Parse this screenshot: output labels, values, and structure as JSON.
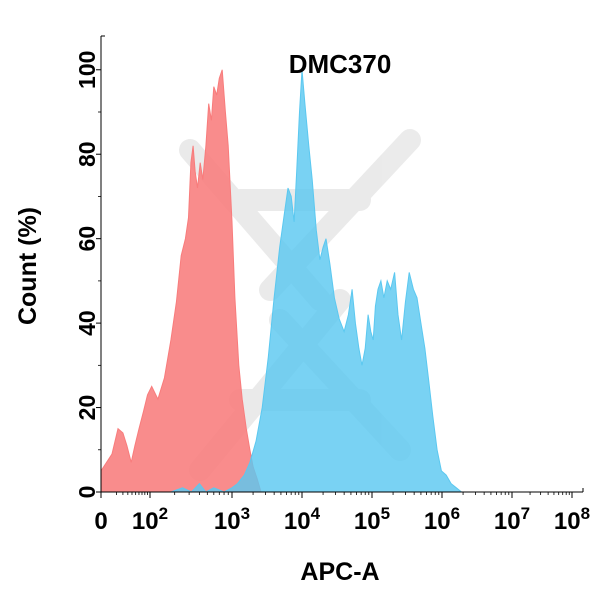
{
  "chart_data": {
    "type": "area",
    "title": "DMC370",
    "xlabel": "APC-A",
    "ylabel": "Count  (%)",
    "x_scale": "biexponential",
    "xlim": [
      0,
      100000000
    ],
    "ylim": [
      0,
      108
    ],
    "grid": false,
    "legend": "none",
    "x_ticks": [
      {
        "value": 0,
        "label": "0",
        "sup": ""
      },
      {
        "value": 100,
        "label": "10",
        "sup": "2"
      },
      {
        "value": 1000,
        "label": "10",
        "sup": "3"
      },
      {
        "value": 10000,
        "label": "10",
        "sup": "4"
      },
      {
        "value": 100000,
        "label": "10",
        "sup": "5"
      },
      {
        "value": 1000000,
        "label": "10",
        "sup": "6"
      },
      {
        "value": 10000000,
        "label": "10",
        "sup": "7"
      },
      {
        "value": 100000000,
        "label": "10",
        "sup": "8"
      }
    ],
    "y_ticks": [
      0,
      20,
      40,
      60,
      80,
      100
    ],
    "series": [
      {
        "color": "#f87c7c",
        "opacity": 0.88,
        "points": [
          [
            0,
            5
          ],
          [
            5,
            9
          ],
          [
            12,
            15
          ],
          [
            20,
            14
          ],
          [
            28,
            11
          ],
          [
            38,
            7
          ],
          [
            48,
            11
          ],
          [
            60,
            15
          ],
          [
            75,
            19
          ],
          [
            90,
            23
          ],
          [
            105,
            25
          ],
          [
            125,
            22
          ],
          [
            150,
            27
          ],
          [
            180,
            36
          ],
          [
            210,
            45
          ],
          [
            240,
            56
          ],
          [
            270,
            60
          ],
          [
            295,
            65
          ],
          [
            315,
            78
          ],
          [
            335,
            82
          ],
          [
            355,
            76
          ],
          [
            380,
            72
          ],
          [
            410,
            78
          ],
          [
            440,
            74
          ],
          [
            480,
            82
          ],
          [
            520,
            92
          ],
          [
            560,
            88
          ],
          [
            600,
            96
          ],
          [
            650,
            94
          ],
          [
            700,
            98
          ],
          [
            760,
            100
          ],
          [
            830,
            90
          ],
          [
            900,
            82
          ],
          [
            1000,
            64
          ],
          [
            1100,
            46
          ],
          [
            1250,
            30
          ],
          [
            1400,
            22
          ],
          [
            1600,
            15
          ],
          [
            1800,
            10
          ],
          [
            2000,
            6
          ],
          [
            2300,
            3
          ],
          [
            2600,
            0
          ]
        ]
      },
      {
        "color": "#5bc8f0",
        "opacity": 0.82,
        "points": [
          [
            180,
            0
          ],
          [
            250,
            1
          ],
          [
            320,
            0
          ],
          [
            400,
            2
          ],
          [
            480,
            0
          ],
          [
            600,
            1
          ],
          [
            800,
            0
          ],
          [
            1000,
            1
          ],
          [
            1200,
            2
          ],
          [
            1500,
            4
          ],
          [
            1800,
            7
          ],
          [
            2200,
            12
          ],
          [
            2700,
            20
          ],
          [
            3300,
            32
          ],
          [
            4000,
            46
          ],
          [
            4800,
            58
          ],
          [
            5600,
            66
          ],
          [
            6300,
            72
          ],
          [
            7000,
            70
          ],
          [
            7700,
            64
          ],
          [
            8400,
            76
          ],
          [
            9200,
            90
          ],
          [
            10000,
            100
          ],
          [
            11000,
            92
          ],
          [
            12500,
            82
          ],
          [
            14000,
            74
          ],
          [
            16000,
            62
          ],
          [
            18000,
            55
          ],
          [
            20000,
            58
          ],
          [
            22000,
            60
          ],
          [
            25000,
            54
          ],
          [
            29000,
            46
          ],
          [
            34000,
            41
          ],
          [
            40000,
            38
          ],
          [
            46000,
            42
          ],
          [
            52000,
            48
          ],
          [
            58000,
            40
          ],
          [
            65000,
            34
          ],
          [
            72000,
            30
          ],
          [
            80000,
            34
          ],
          [
            88000,
            42
          ],
          [
            96000,
            38
          ],
          [
            104000,
            36
          ],
          [
            112000,
            44
          ],
          [
            122000,
            48
          ],
          [
            134000,
            50
          ],
          [
            148000,
            46
          ],
          [
            165000,
            50
          ],
          [
            185000,
            48
          ],
          [
            210000,
            52
          ],
          [
            235000,
            42
          ],
          [
            265000,
            36
          ],
          [
            300000,
            45
          ],
          [
            340000,
            52
          ],
          [
            390000,
            48
          ],
          [
            440000,
            46
          ],
          [
            500000,
            40
          ],
          [
            570000,
            34
          ],
          [
            650000,
            26
          ],
          [
            740000,
            18
          ],
          [
            850000,
            10
          ],
          [
            980000,
            5
          ],
          [
            1150000,
            4
          ],
          [
            1350000,
            2
          ],
          [
            1600000,
            1
          ],
          [
            1900000,
            0
          ]
        ]
      }
    ]
  }
}
